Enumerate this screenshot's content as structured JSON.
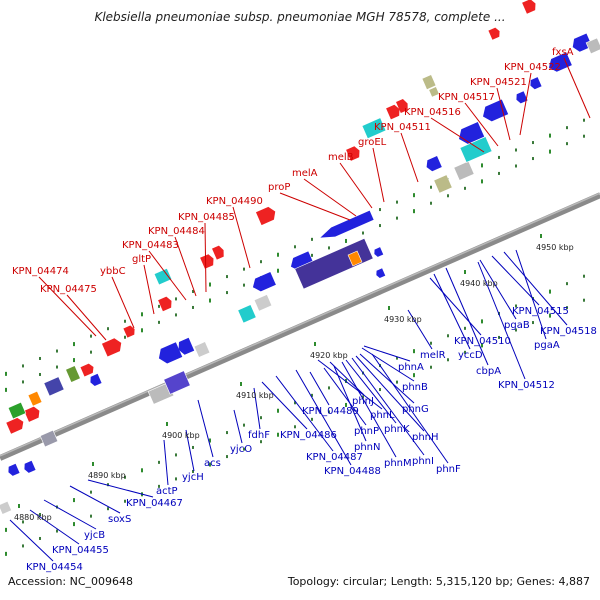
{
  "title": "Klebsiella pneumoniae subsp. pneumoniae MGH 78578, complete ...",
  "accession": "Accession: NC_009648",
  "summary": "Topology: circular; Length: 5,315,120 bp; Genes: 4,887",
  "colors": {
    "forward_label": "#cc0000",
    "reverse_label": "#0000bb",
    "backbone": "#888888"
  },
  "ticks": [
    "4880 kbp",
    "4890 kbp",
    "4900 kbp",
    "4910 kbp",
    "4920 kbp",
    "4930 kbp",
    "4940 kbp",
    "4950 kbp"
  ],
  "forward_genes": [
    "KPN_04474",
    "KPN_04475",
    "ybbC",
    "gltP",
    "KPN_04483",
    "KPN_04484",
    "KPN_04485",
    "KPN_04490",
    "proP",
    "melA",
    "melB",
    "groEL",
    "KPN_04511",
    "KPN_04516",
    "KPN_04517",
    "KPN_04521",
    "KPN_04522",
    "fxsA"
  ],
  "reverse_genes": [
    "KPN_04454",
    "KPN_04455",
    "yjcB",
    "soxS",
    "KPN_04467",
    "actP",
    "yjcH",
    "acs",
    "yjcO",
    "fdhF",
    "KPN_04486",
    "KPN_04487",
    "KPN_04488",
    "KPN_04489",
    "phnP",
    "phnN",
    "phnM",
    "phnL",
    "phnK",
    "phnJ",
    "phnI",
    "phnH",
    "phnG",
    "phnF",
    "phnB",
    "phnA",
    "melR",
    "KPN_04510",
    "yccD",
    "cbpA",
    "KPN_04512",
    "pgaB",
    "KPN_04515",
    "pgaA",
    "KPN_04518"
  ]
}
